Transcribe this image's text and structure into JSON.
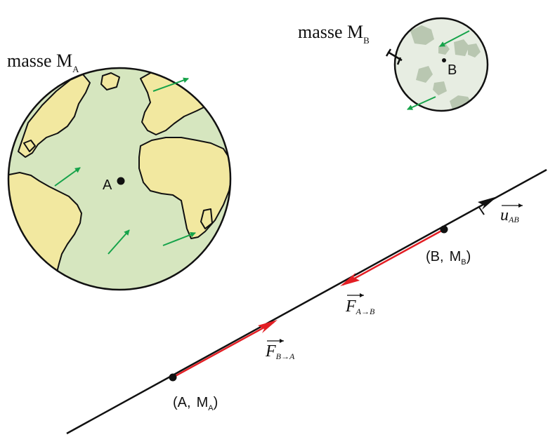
{
  "bodies": {
    "a": {
      "mass_prefix": "masse M",
      "mass_sub": "A",
      "point_label": "A",
      "colors": {
        "ocean": "#d6e6bf",
        "land": "#f2e8a0",
        "outline": "#111111"
      }
    },
    "b": {
      "mass_prefix": "masse M",
      "mass_sub": "B",
      "point_label": "B",
      "colors": {
        "surface": "#e7ede2",
        "craters": "#b9c7b1",
        "outline": "#111111"
      }
    }
  },
  "axis": {
    "point_a": {
      "open": "(A,",
      "mass": "M",
      "sub": "A",
      "close": ")"
    },
    "point_b": {
      "open": "(B,",
      "mass": "M",
      "sub": "B",
      "close": ")"
    },
    "unit_vector": {
      "letter": "u",
      "sub": "AB"
    }
  },
  "forces": {
    "on_b": {
      "letter": "F",
      "sub": "A→B"
    },
    "on_a": {
      "letter": "F",
      "sub": "B→A"
    },
    "color": "#e31e24"
  },
  "surface_arrow_color": "#16a34a"
}
